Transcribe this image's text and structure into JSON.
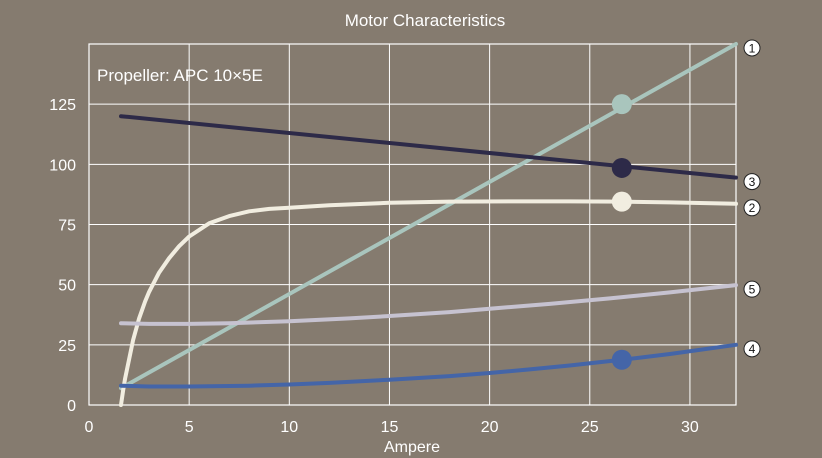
{
  "chart_data": {
    "type": "line",
    "title": "Motor Characteristics",
    "xlabel": "Ampere",
    "ylabel": "",
    "xlim": [
      0,
      32.3
    ],
    "ylim": [
      0,
      150
    ],
    "xticks": [
      0,
      5,
      10,
      15,
      20,
      25,
      30
    ],
    "yticks": [
      0,
      25,
      50,
      75,
      100,
      125
    ],
    "grid": true,
    "background": "#857b6f",
    "grid_color": "#ffffff",
    "annotation": "Propeller:  APC 10×5E",
    "marker_x": 26.6,
    "series": [
      {
        "id": "1",
        "color": "#a9c5bd",
        "x": [
          1.6,
          32.3
        ],
        "y": [
          7,
          150
        ],
        "marker_y": 125
      },
      {
        "id": "2",
        "color": "#f1ede0",
        "x": [
          1.6,
          1.7,
          1.8,
          2.0,
          2.2,
          2.5,
          2.8,
          3.0,
          3.5,
          4.0,
          4.5,
          5.0,
          6.0,
          7.0,
          8.0,
          9.0,
          10.0,
          12.0,
          15.0,
          18.0,
          21.0,
          24.0,
          26.6,
          29.0,
          32.3
        ],
        "y": [
          0,
          6,
          11,
          19,
          27,
          36,
          43,
          47,
          55,
          61,
          66,
          70,
          75.5,
          78.5,
          80.5,
          81.5,
          82,
          83,
          84,
          84.5,
          84.6,
          84.6,
          84.5,
          84.2,
          83.6
        ],
        "marker_y": 84.5
      },
      {
        "id": "3",
        "color": "#2d2a48",
        "x": [
          1.6,
          32.3
        ],
        "y": [
          120,
          94.5
        ],
        "marker_y": 98.5
      },
      {
        "id": "4",
        "color": "#4465a8",
        "x": [
          1.6,
          3,
          5,
          8,
          10,
          12,
          15,
          18,
          20,
          22,
          24,
          26.6,
          29,
          32.3
        ],
        "y": [
          8,
          7.7,
          7.7,
          8,
          8.5,
          9.2,
          10.5,
          12,
          13.3,
          14.8,
          16.4,
          18.8,
          21.2,
          25
        ],
        "marker_y": 18.8
      },
      {
        "id": "5",
        "color": "#c6c2d0",
        "x": [
          1.6,
          3,
          5,
          7,
          10,
          13,
          15,
          18,
          20,
          23,
          26,
          29,
          32.3
        ],
        "y": [
          34,
          33.7,
          33.7,
          34,
          34.8,
          36,
          37,
          38.6,
          40,
          42,
          44.3,
          46.8,
          49.8
        ]
      }
    ]
  }
}
